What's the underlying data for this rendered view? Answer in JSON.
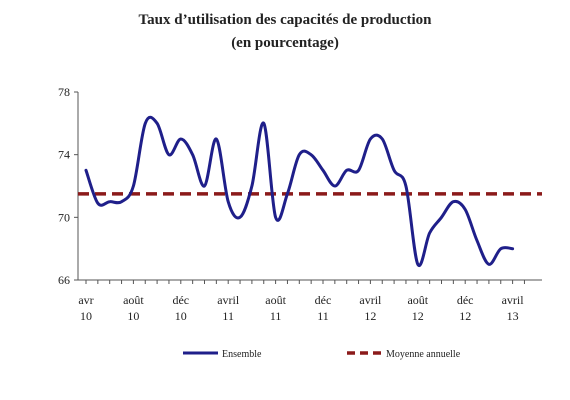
{
  "chart_data": {
    "type": "line",
    "title": "Taux d’utilisation des capacités de production",
    "subtitle": "(en pourcentage)",
    "ylim": [
      66,
      78
    ],
    "yticks": [
      66,
      70,
      74,
      78
    ],
    "xtick_labels": [
      {
        "month": "avr",
        "year": "10"
      },
      {
        "month": "août",
        "year": "10"
      },
      {
        "month": "déc",
        "year": "10"
      },
      {
        "month": "avril",
        "year": "11"
      },
      {
        "month": "août",
        "year": "11"
      },
      {
        "month": "déc",
        "year": "11"
      },
      {
        "month": "avril",
        "year": "12"
      },
      {
        "month": "août",
        "year": "12"
      },
      {
        "month": "déc",
        "year": "12"
      },
      {
        "month": "avril",
        "year": "13"
      }
    ],
    "grid": false,
    "legend_position": "bottom",
    "series": [
      {
        "name": "Ensemble",
        "color": "#1f1f8a",
        "style": "solid",
        "x": [
          "2010-04",
          "2010-05",
          "2010-06",
          "2010-07",
          "2010-08",
          "2010-09",
          "2010-10",
          "2010-11",
          "2010-12",
          "2011-01",
          "2011-02",
          "2011-03",
          "2011-04",
          "2011-05",
          "2011-06",
          "2011-07",
          "2011-08",
          "2011-09",
          "2011-10",
          "2011-11",
          "2011-12",
          "2012-01",
          "2012-02",
          "2012-03",
          "2012-04",
          "2012-05",
          "2012-06",
          "2012-07",
          "2012-08",
          "2012-09",
          "2012-10",
          "2012-11",
          "2012-12",
          "2013-01",
          "2013-02",
          "2013-03",
          "2013-04"
        ],
        "values": [
          73.0,
          70.9,
          71.0,
          71.0,
          72.0,
          76.0,
          76.0,
          74.0,
          75.0,
          74.0,
          72.0,
          75.0,
          71.0,
          70.0,
          72.0,
          76.0,
          70.0,
          71.5,
          74.0,
          74.0,
          73.0,
          72.0,
          73.0,
          73.0,
          75.0,
          75.0,
          73.0,
          72.0,
          67.0,
          69.0,
          70.0,
          71.0,
          70.5,
          68.5,
          67.0,
          68.0,
          68.0
        ]
      },
      {
        "name": "Moyenne annuelle",
        "color": "#8b1a1a",
        "style": "dashed",
        "values": [
          71.5
        ]
      }
    ]
  }
}
